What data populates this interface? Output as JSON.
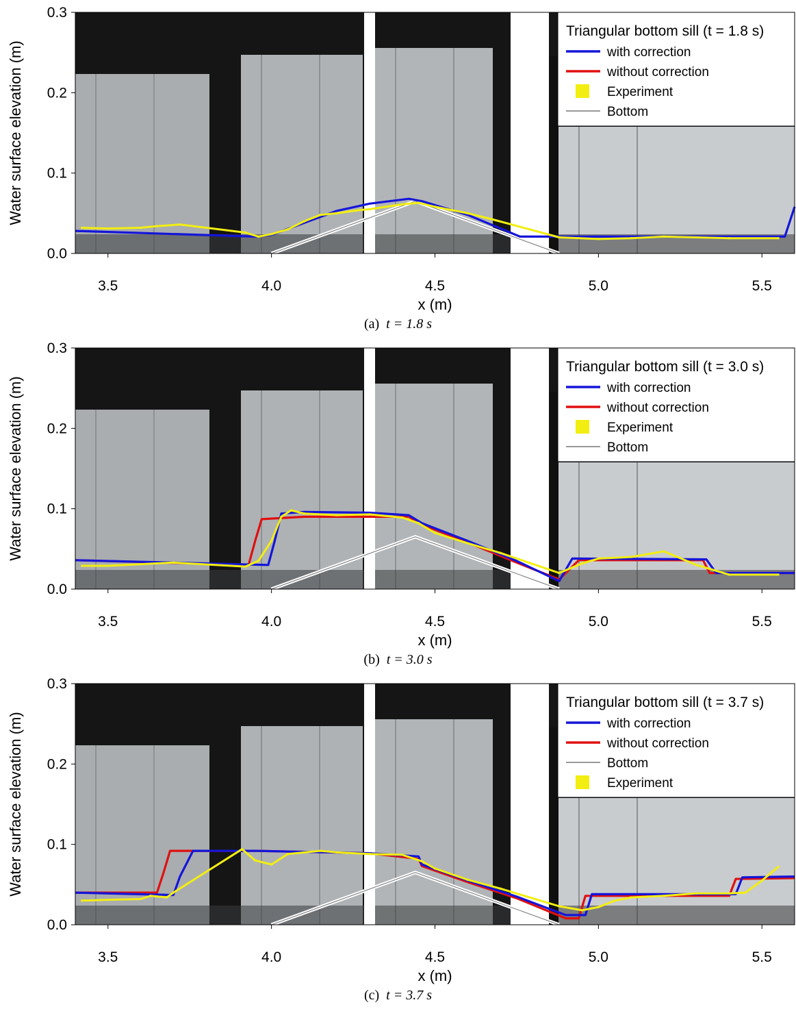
{
  "colors": {
    "with_correction": "#1515d8",
    "without_correction": "#e01010",
    "experiment": "#f2ee12",
    "bottom": "#ffffff"
  },
  "chart_data": [
    {
      "type": "line",
      "panel_caption": "(a)",
      "caption_time": "t = 1.8 s",
      "title": "Triangular bottom sill (t = 1.8 s)",
      "xlabel": "x (m)",
      "ylabel": "Water surface elevation (m)",
      "xlim": [
        3.4,
        5.6
      ],
      "ylim": [
        0.0,
        0.3
      ],
      "xticks": [
        "3.5",
        "4.0",
        "4.5",
        "5.0",
        "5.5"
      ],
      "yticks": [
        "0.0",
        "0.1",
        "0.2",
        "0.3"
      ],
      "legend": [
        "with correction",
        "without correction",
        "Experiment",
        "Bottom"
      ],
      "legend_position": "top-right",
      "series": [
        {
          "name": "with correction",
          "x": [
            3.4,
            3.95,
            4.0,
            4.1,
            4.2,
            4.3,
            4.42,
            4.46,
            4.6,
            4.76,
            5.57,
            5.6
          ],
          "y": [
            0.028,
            0.021,
            0.023,
            0.038,
            0.053,
            0.062,
            0.068,
            0.065,
            0.048,
            0.021,
            0.021,
            0.058
          ]
        },
        {
          "name": "Experiment",
          "x": [
            3.42,
            3.5,
            3.6,
            3.65,
            3.72,
            3.92,
            3.96,
            4.0,
            4.05,
            4.1,
            4.15,
            4.2,
            4.27,
            4.3,
            4.35,
            4.4,
            4.45,
            4.5,
            4.55,
            4.6,
            4.67,
            4.88,
            5.0,
            5.1,
            5.2,
            5.3,
            5.4,
            5.55
          ],
          "y": [
            0.032,
            0.031,
            0.032,
            0.034,
            0.036,
            0.026,
            0.021,
            0.024,
            0.03,
            0.04,
            0.048,
            0.05,
            0.054,
            0.055,
            0.058,
            0.061,
            0.063,
            0.058,
            0.054,
            0.05,
            0.043,
            0.02,
            0.018,
            0.019,
            0.021,
            0.02,
            0.019,
            0.019
          ]
        },
        {
          "name": "Bottom",
          "x": [
            4.0,
            4.44,
            4.88
          ],
          "y": [
            0.0,
            0.065,
            0.0
          ]
        }
      ]
    },
    {
      "type": "line",
      "panel_caption": "(b)",
      "caption_time": "t = 3.0 s",
      "title": "Triangular bottom sill (t = 3.0 s)",
      "xlabel": "x (m)",
      "ylabel": "Water surface elevation (m)",
      "xlim": [
        3.4,
        5.6
      ],
      "ylim": [
        0.0,
        0.3
      ],
      "xticks": [
        "3.5",
        "4.0",
        "4.5",
        "5.0",
        "5.5"
      ],
      "yticks": [
        "0.0",
        "0.1",
        "0.2",
        "0.3"
      ],
      "legend": [
        "with correction",
        "without correction",
        "Experiment",
        "Bottom"
      ],
      "legend_position": "top-right",
      "series": [
        {
          "name": "with correction",
          "x": [
            3.4,
            3.99,
            4.01,
            4.03,
            4.1,
            4.3,
            4.42,
            4.46,
            4.6,
            4.75,
            4.88,
            4.92,
            5.33,
            5.36,
            5.6
          ],
          "y": [
            0.036,
            0.03,
            0.06,
            0.094,
            0.096,
            0.095,
            0.092,
            0.082,
            0.06,
            0.035,
            0.01,
            0.038,
            0.037,
            0.02,
            0.02
          ]
        },
        {
          "name": "without correction",
          "x": [
            3.4,
            3.93,
            3.95,
            3.97,
            4.1,
            4.3,
            4.42,
            4.46,
            4.6,
            4.75,
            4.88,
            4.94,
            5.32,
            5.34,
            5.6
          ],
          "y": [
            0.036,
            0.03,
            0.06,
            0.087,
            0.09,
            0.09,
            0.09,
            0.08,
            0.058,
            0.033,
            0.012,
            0.036,
            0.036,
            0.02,
            0.02
          ]
        },
        {
          "name": "Experiment",
          "x": [
            3.42,
            3.5,
            3.6,
            3.7,
            3.92,
            3.96,
            4.0,
            4.03,
            4.06,
            4.1,
            4.2,
            4.3,
            4.4,
            4.45,
            4.5,
            4.6,
            4.7,
            4.88,
            4.95,
            5.0,
            5.1,
            5.2,
            5.3,
            5.4,
            5.55
          ],
          "y": [
            0.029,
            0.029,
            0.031,
            0.033,
            0.028,
            0.035,
            0.06,
            0.09,
            0.098,
            0.094,
            0.092,
            0.093,
            0.089,
            0.082,
            0.07,
            0.057,
            0.045,
            0.02,
            0.032,
            0.038,
            0.04,
            0.047,
            0.03,
            0.018,
            0.018
          ]
        },
        {
          "name": "Bottom",
          "x": [
            4.0,
            4.44,
            4.88
          ],
          "y": [
            0.0,
            0.065,
            0.0
          ]
        }
      ]
    },
    {
      "type": "line",
      "panel_caption": "(c)",
      "caption_time": "t = 3.7 s",
      "title": "Triangular bottom sill (t = 3.7 s)",
      "xlabel": "x (m)",
      "ylabel": "Water surface elevation (m)",
      "xlim": [
        3.4,
        5.6
      ],
      "ylim": [
        0.0,
        0.3
      ],
      "xticks": [
        "3.5",
        "4.0",
        "4.5",
        "5.0",
        "5.5"
      ],
      "yticks": [
        "0.0",
        "0.1",
        "0.2",
        "0.3"
      ],
      "legend": [
        "with correction",
        "without correction",
        "Bottom",
        "Experiment"
      ],
      "legend_position": "top-right",
      "series": [
        {
          "name": "with correction",
          "x": [
            3.4,
            3.7,
            3.72,
            3.76,
            3.95,
            4.3,
            4.45,
            4.46,
            4.6,
            4.75,
            4.9,
            4.96,
            4.98,
            5.42,
            5.44,
            5.6
          ],
          "y": [
            0.04,
            0.037,
            0.06,
            0.092,
            0.092,
            0.089,
            0.085,
            0.075,
            0.055,
            0.035,
            0.012,
            0.012,
            0.038,
            0.038,
            0.059,
            0.06
          ]
        },
        {
          "name": "without correction",
          "x": [
            3.4,
            3.65,
            3.67,
            3.69,
            3.95,
            4.3,
            4.45,
            4.46,
            4.6,
            4.75,
            4.9,
            4.94,
            4.96,
            5.4,
            5.42,
            5.6
          ],
          "y": [
            0.04,
            0.04,
            0.065,
            0.092,
            0.092,
            0.089,
            0.082,
            0.073,
            0.053,
            0.033,
            0.008,
            0.008,
            0.036,
            0.036,
            0.057,
            0.058
          ]
        },
        {
          "name": "Bottom",
          "x": [
            4.0,
            4.44,
            4.88
          ],
          "y": [
            0.0,
            0.065,
            0.0
          ]
        },
        {
          "name": "Experiment",
          "x": [
            3.42,
            3.5,
            3.6,
            3.63,
            3.68,
            3.7,
            3.91,
            3.95,
            4.0,
            4.05,
            4.1,
            4.15,
            4.2,
            4.3,
            4.4,
            4.46,
            4.5,
            4.6,
            4.7,
            4.88,
            4.95,
            5.0,
            5.05,
            5.1,
            5.2,
            5.3,
            5.4,
            5.45,
            5.5,
            5.55
          ],
          "y": [
            0.03,
            0.031,
            0.032,
            0.036,
            0.034,
            0.04,
            0.094,
            0.08,
            0.075,
            0.088,
            0.09,
            0.092,
            0.09,
            0.088,
            0.087,
            0.079,
            0.07,
            0.056,
            0.045,
            0.023,
            0.018,
            0.022,
            0.03,
            0.034,
            0.036,
            0.039,
            0.039,
            0.04,
            0.055,
            0.072
          ]
        }
      ]
    }
  ]
}
